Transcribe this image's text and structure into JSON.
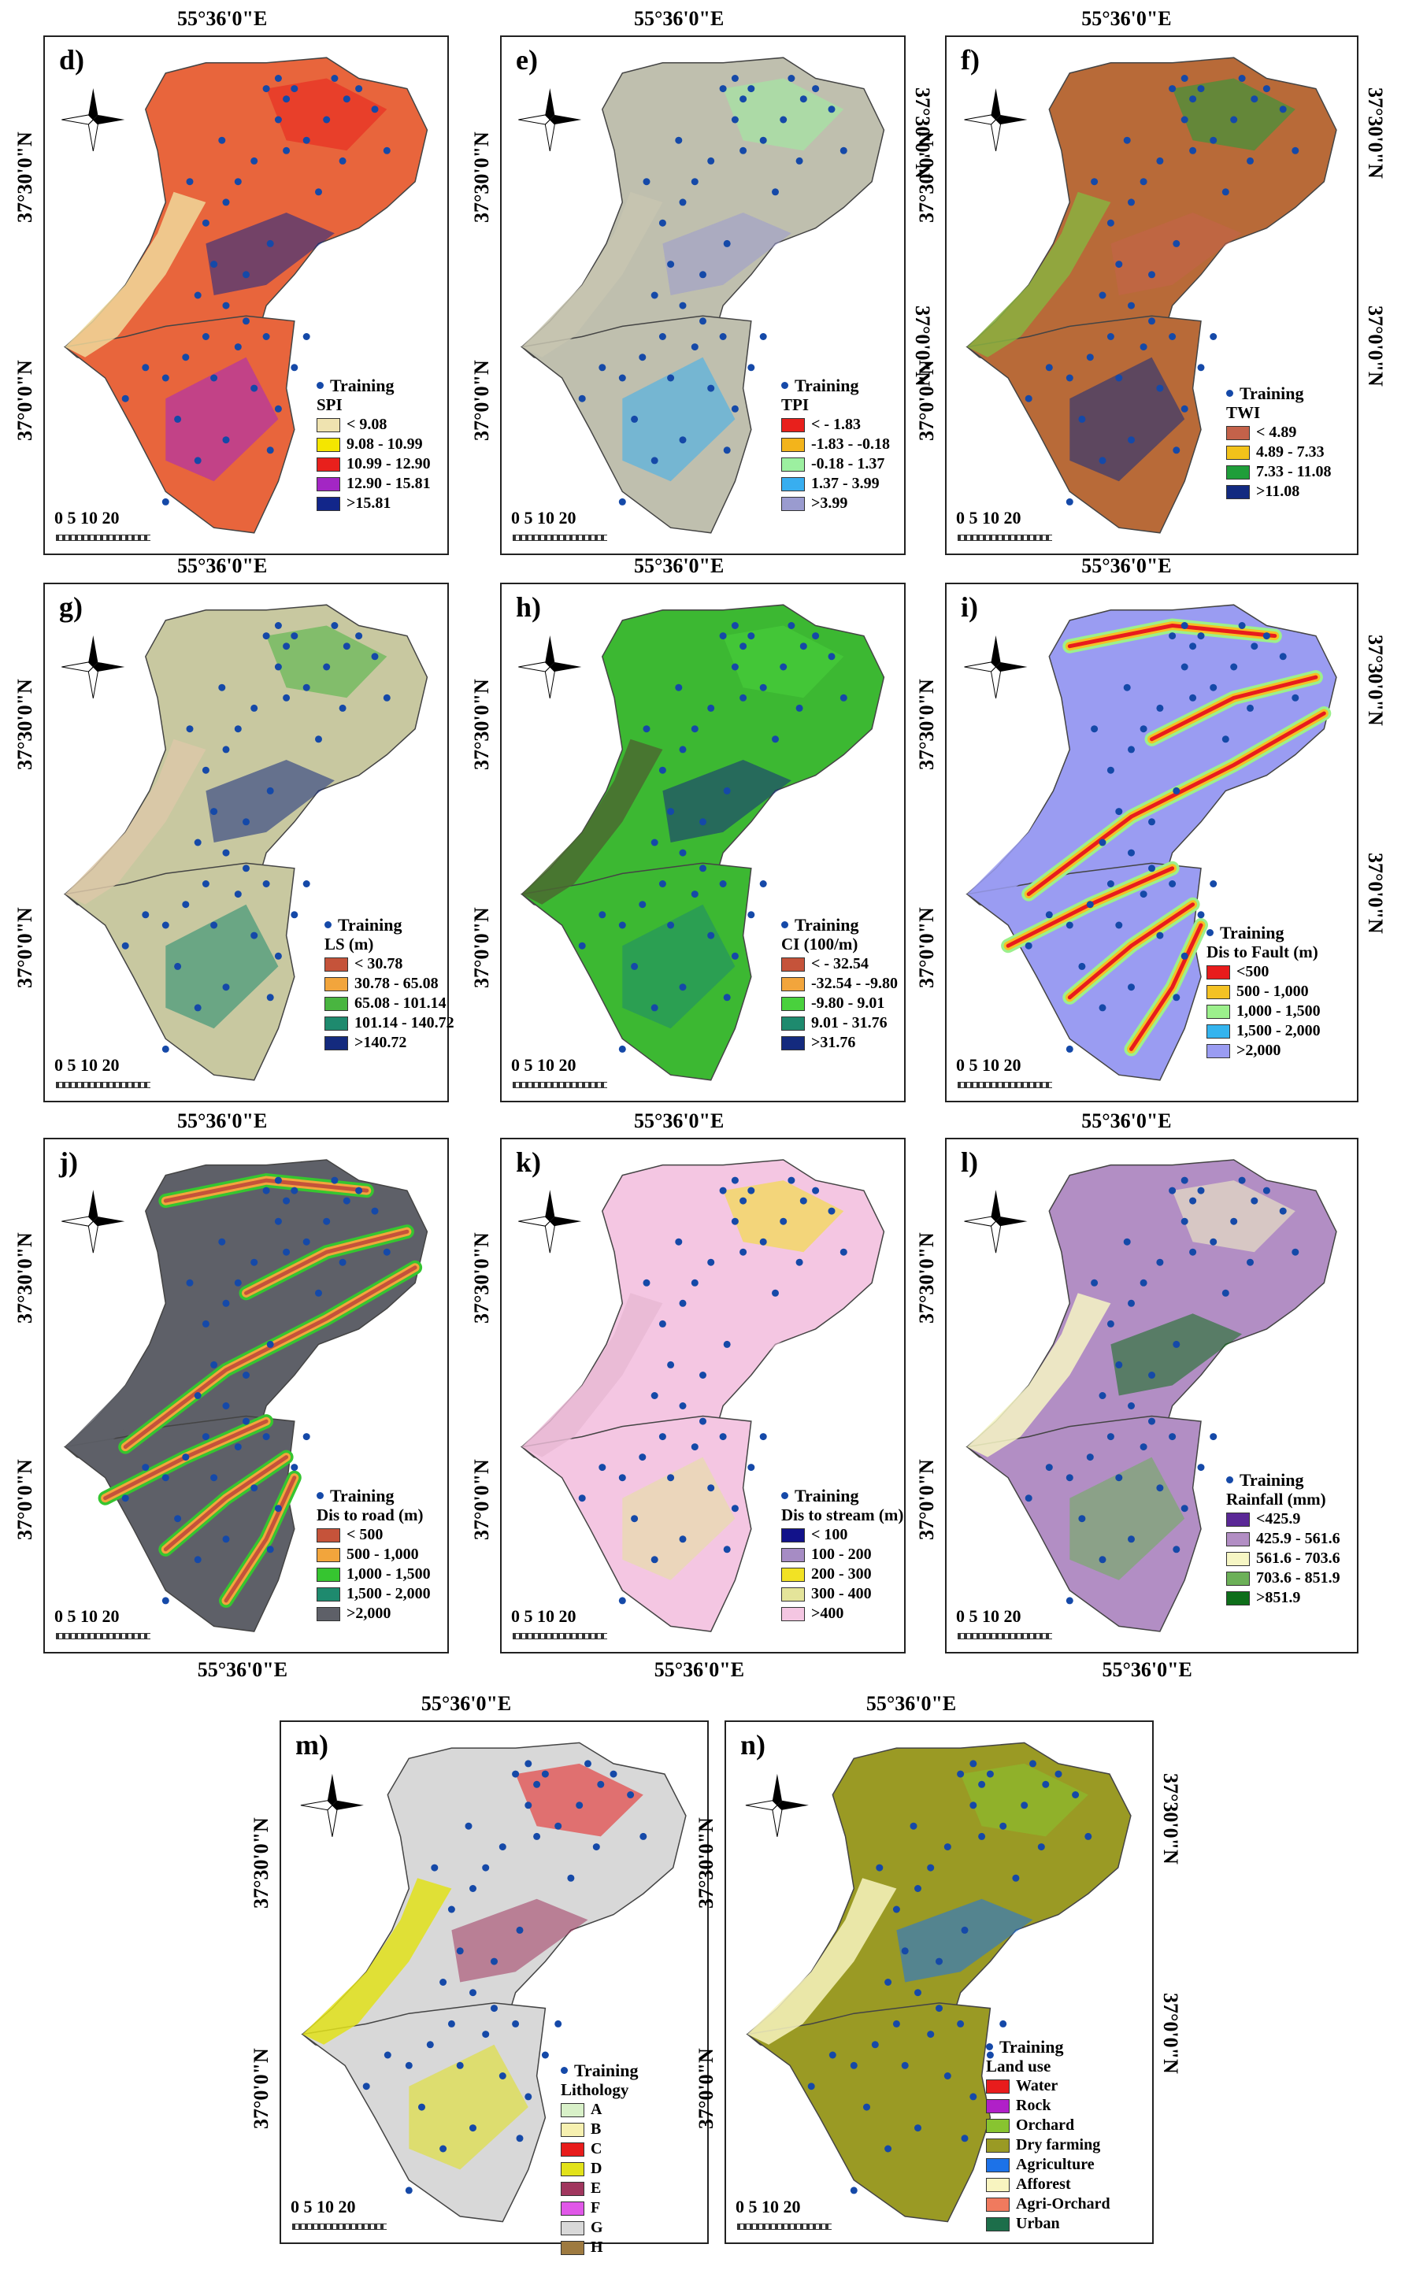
{
  "common": {
    "lon": "55°36'0\"E",
    "lat_upper": "37°30'0\"N",
    "lat_lower": "37°0'0\"N",
    "training": "Training",
    "scale": "0  5 10    20",
    "point_color": "#1549a8"
  },
  "panels": {
    "d": {
      "label": "d)",
      "legend_title": "SPI",
      "classes": [
        {
          "label": "< 9.08",
          "color": "#efe3b0"
        },
        {
          "label": "9.08 - 10.99",
          "color": "#f4e600"
        },
        {
          "label": "10.99 - 12.90",
          "color": "#e8201c"
        },
        {
          "label": "12.90 - 15.81",
          "color": "#a326c4"
        },
        {
          "label": ">15.81",
          "color": "#12268a"
        }
      ]
    },
    "e": {
      "label": "e)",
      "legend_title": "TPI",
      "classes": [
        {
          "label": "< - 1.83",
          "color": "#e8201c"
        },
        {
          "label": "-1.83 - -0.18",
          "color": "#f3b41b"
        },
        {
          "label": "-0.18 - 1.37",
          "color": "#9cf0a0"
        },
        {
          "label": "1.37 - 3.99",
          "color": "#38aef0"
        },
        {
          "label": ">3.99",
          "color": "#9a9bcf"
        }
      ]
    },
    "f": {
      "label": "f)",
      "legend_title": "TWI",
      "classes": [
        {
          "label": "< 4.89",
          "color": "#c4624a"
        },
        {
          "label": "4.89 - 7.33",
          "color": "#f2c21a"
        },
        {
          "label": "7.33 - 11.08",
          "color": "#1f9e3a"
        },
        {
          "label": ">11.08",
          "color": "#122a80"
        }
      ]
    },
    "g": {
      "label": "g)",
      "legend_title": "LS (m)",
      "classes": [
        {
          "label": "< 30.78",
          "color": "#c5533a"
        },
        {
          "label": "30.78 - 65.08",
          "color": "#f2a53c"
        },
        {
          "label": "65.08 - 101.14",
          "color": "#49b540"
        },
        {
          "label": "101.14 - 140.72",
          "color": "#1e8a6e"
        },
        {
          "label": ">140.72",
          "color": "#142a7e"
        }
      ]
    },
    "h": {
      "label": "h)",
      "legend_title": "CI (100/m)",
      "classes": [
        {
          "label": "< - 32.54",
          "color": "#c5533a"
        },
        {
          "label": "-32.54 - -9.80",
          "color": "#f2a53c"
        },
        {
          "label": "-9.80 - 9.01",
          "color": "#49d13d"
        },
        {
          "label": "9.01 - 31.76",
          "color": "#1e8a6e"
        },
        {
          "label": ">31.76",
          "color": "#142a7e"
        }
      ]
    },
    "i": {
      "label": "i)",
      "legend_title": "Dis to Fault (m)",
      "classes": [
        {
          "label": "<500",
          "color": "#e81c1c"
        },
        {
          "label": "500 - 1,000",
          "color": "#f4c224"
        },
        {
          "label": "1,000 - 1,500",
          "color": "#9cf08c"
        },
        {
          "label": "1,500 - 2,000",
          "color": "#34b4ee"
        },
        {
          "label": ">2,000",
          "color": "#9a9cf2"
        }
      ]
    },
    "j": {
      "label": "j)",
      "legend_title": "Dis to road (m)",
      "classes": [
        {
          "label": "< 500",
          "color": "#c5533a"
        },
        {
          "label": "500 - 1,000",
          "color": "#f2a53c"
        },
        {
          "label": "1,000 - 1,500",
          "color": "#36c530"
        },
        {
          "label": "1,500 - 2,000",
          "color": "#1e8a6e"
        },
        {
          "label": ">2,000",
          "color": "#5e6068"
        }
      ]
    },
    "k": {
      "label": "k)",
      "legend_title": "Dis to stream (m)",
      "classes": [
        {
          "label": "< 100",
          "color": "#12128a"
        },
        {
          "label": "100 - 200",
          "color": "#a68cc4"
        },
        {
          "label": "200 - 300",
          "color": "#f2e224"
        },
        {
          "label": "300 - 400",
          "color": "#e4e49a"
        },
        {
          "label": ">400",
          "color": "#f4c6e2"
        }
      ]
    },
    "l": {
      "label": "l)",
      "legend_title": "Rainfall (mm)",
      "classes": [
        {
          "label": "<425.9",
          "color": "#5a2896"
        },
        {
          "label": "425.9 - 561.6",
          "color": "#b28ec4"
        },
        {
          "label": "561.6 - 703.6",
          "color": "#f6f6c4"
        },
        {
          "label": "703.6 - 851.9",
          "color": "#6cb058"
        },
        {
          "label": ">851.9",
          "color": "#0e6e1a"
        }
      ]
    },
    "m": {
      "label": "m)",
      "legend_title": "Lithology",
      "classes": [
        {
          "label": "A",
          "color": "#d8f0c8"
        },
        {
          "label": "B",
          "color": "#f6f0b0"
        },
        {
          "label": "C",
          "color": "#e81c1c"
        },
        {
          "label": "D",
          "color": "#e2e21a"
        },
        {
          "label": "E",
          "color": "#a0365e"
        },
        {
          "label": "F",
          "color": "#e058e8"
        },
        {
          "label": "G",
          "color": "#d8d8d8"
        },
        {
          "label": "H",
          "color": "#9e7a40"
        }
      ]
    },
    "n": {
      "label": "n)",
      "legend_title": "Land use",
      "classes": [
        {
          "label": "Water",
          "color": "#e81c1c"
        },
        {
          "label": "Rock",
          "color": "#b020c8"
        },
        {
          "label": "Orchard",
          "color": "#88c430"
        },
        {
          "label": "Dry farming",
          "color": "#9a9a24"
        },
        {
          "label": "Agriculture",
          "color": "#1c72e8"
        },
        {
          "label": "Afforest",
          "color": "#f8f4c0"
        },
        {
          "label": "Agri-Orchard",
          "color": "#f07a5e"
        },
        {
          "label": "Urban",
          "color": "#1c6e4a"
        }
      ]
    }
  }
}
